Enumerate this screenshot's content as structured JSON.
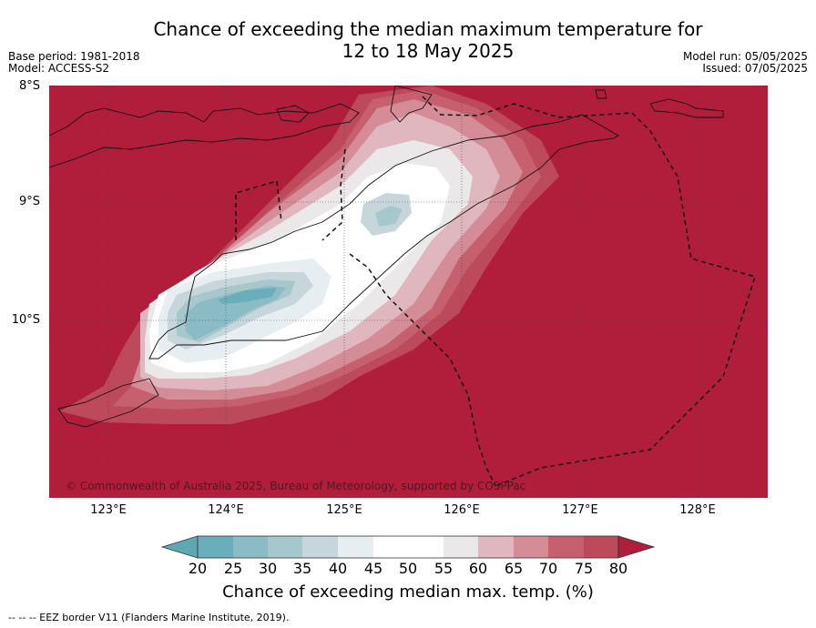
{
  "title_line1": "Chance of exceeding the median maximum temperature for",
  "title_line2": "12 to 18 May 2025",
  "base_period": "Base period: 1981-2018",
  "model": "Model: ACCESS-S2",
  "model_run": "Model run: 05/05/2025",
  "issued": "Issued: 07/05/2025",
  "lat_labels": [
    "8°S",
    "9°S",
    "10°S"
  ],
  "lon_labels": [
    "123°E",
    "124°E",
    "125°E",
    "126°E",
    "127°E",
    "128°E"
  ],
  "copyright": "© Commonwealth of Australia 2025, Bureau of Meteorology, supported by COSPPac",
  "colorbar": {
    "ticks": [
      "20",
      "25",
      "30",
      "35",
      "40",
      "45",
      "50",
      "55",
      "60",
      "65",
      "70",
      "75",
      "80"
    ],
    "label": "Chance of exceeding median max. temp. (%)",
    "colors": [
      "#5ea8b4",
      "#6aaebb",
      "#8bbcc6",
      "#a6c8cd",
      "#c6d6db",
      "#e6eef1",
      "#ffffff",
      "#ffffff",
      "#ebe8ea",
      "#e0b6bf",
      "#d48c97",
      "#c6606f",
      "#bd4a5b",
      "#b01e3b"
    ]
  },
  "footer": "--  --  -- EEZ border V11 (Flanders Marine Institute, 2019).",
  "map": {
    "background_color": "#b01e3b",
    "region": "Timor",
    "lat_range": [
      "8°S",
      "11.5°S"
    ],
    "lon_range": [
      "122.5°E",
      "128.6°E"
    ]
  }
}
